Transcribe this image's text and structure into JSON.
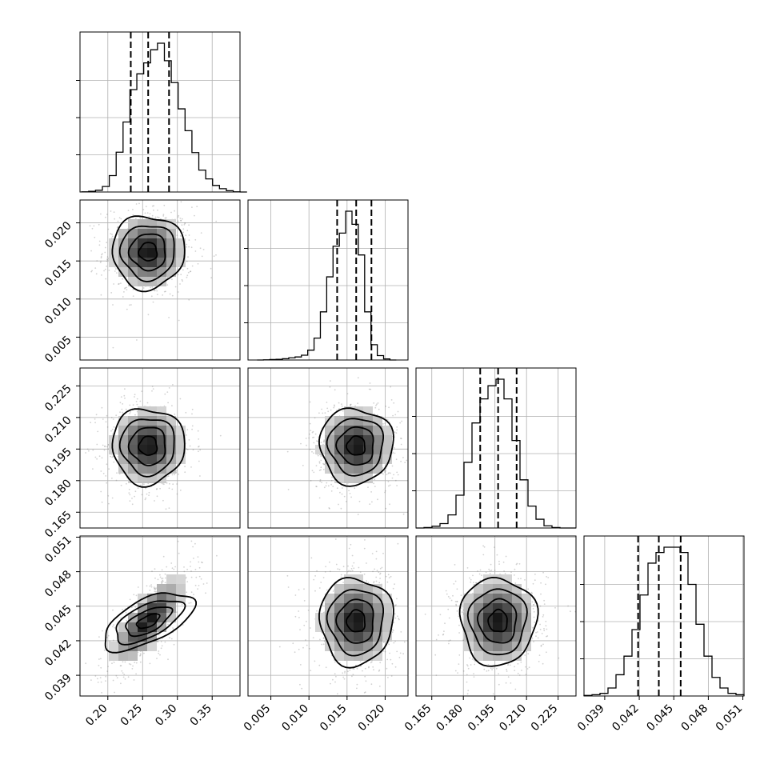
{
  "chart_data": {
    "type": "corner",
    "grid": true,
    "colors": {
      "line": "#000000",
      "grid": "#b0b0b0",
      "points": "#7f7f7f",
      "background": "#ffffff"
    },
    "parameters": [
      {
        "index": 0,
        "axis_range": [
          0.16,
          0.39
        ],
        "ticks": [
          0.2,
          0.25,
          0.3,
          0.35
        ],
        "tick_labels": [
          "0.20",
          "0.25",
          "0.30",
          "0.35"
        ],
        "quantiles": [
          0.233,
          0.258,
          0.288
        ]
      },
      {
        "index": 1,
        "axis_range": [
          0.002,
          0.023
        ],
        "ticks": [
          0.005,
          0.01,
          0.015,
          0.02
        ],
        "tick_labels": [
          "0.005",
          "0.010",
          "0.015",
          "0.020"
        ],
        "quantiles": [
          0.0137,
          0.0162,
          0.0182
        ]
      },
      {
        "index": 2,
        "axis_range": [
          0.1575,
          0.2335
        ],
        "ticks": [
          0.165,
          0.18,
          0.195,
          0.21,
          0.225
        ],
        "tick_labels": [
          "0.165",
          "0.180",
          "0.195",
          "0.210",
          "0.225"
        ],
        "quantiles": [
          0.188,
          0.1965,
          0.2053
        ]
      },
      {
        "index": 3,
        "axis_range": [
          0.0372,
          0.0511
        ],
        "ticks": [
          0.039,
          0.042,
          0.045,
          0.048,
          0.051
        ],
        "tick_labels": [
          "0.039",
          "0.042",
          "0.045",
          "0.048",
          "0.051"
        ],
        "quantiles": [
          0.0419,
          0.0437,
          0.0456
        ]
      }
    ],
    "histograms": [
      {
        "param": 0,
        "bin_edges_start": 0.1625,
        "bin_width": 0.0099,
        "counts": [
          1,
          3,
          8,
          25,
          75,
          182,
          320,
          468,
          540,
          590,
          650,
          680,
          600,
          500,
          380,
          280,
          180,
          100,
          60,
          30,
          15,
          6,
          1,
          0
        ]
      },
      {
        "param": 1,
        "bin_edges_start": 0.0032,
        "bin_width": 0.00083,
        "counts": [
          0,
          1,
          2,
          3,
          6,
          10,
          14,
          22,
          45,
          100,
          220,
          380,
          520,
          580,
          680,
          620,
          480,
          220,
          70,
          20,
          5,
          0
        ]
      },
      {
        "param": 2,
        "bin_edges_start": 0.1575,
        "bin_width": 0.0038,
        "counts": [
          0,
          2,
          8,
          20,
          60,
          150,
          300,
          480,
          590,
          650,
          680,
          590,
          400,
          220,
          100,
          40,
          10,
          2,
          0,
          0
        ]
      },
      {
        "param": 3,
        "bin_edges_start": 0.0372,
        "bin_width": 0.000695,
        "counts": [
          2,
          5,
          10,
          30,
          80,
          150,
          250,
          380,
          500,
          540,
          560,
          560,
          540,
          420,
          270,
          150,
          70,
          30,
          10,
          5
        ]
      }
    ],
    "pairs": [
      {
        "x_param": 0,
        "y_param": 1,
        "mean": [
          0.258,
          0.0162
        ],
        "sd": [
          0.026,
          0.0024
        ],
        "rho": 0.0
      },
      {
        "x_param": 0,
        "y_param": 2,
        "mean": [
          0.258,
          0.1965
        ],
        "sd": [
          0.026,
          0.009
        ],
        "rho": 0.0
      },
      {
        "x_param": 1,
        "y_param": 2,
        "mean": [
          0.0162,
          0.1965
        ],
        "sd": [
          0.0024,
          0.009
        ],
        "rho": 0.0
      },
      {
        "x_param": 0,
        "y_param": 3,
        "mean": [
          0.258,
          0.0437
        ],
        "sd": [
          0.026,
          0.0019
        ],
        "rho": 0.75
      },
      {
        "x_param": 1,
        "y_param": 3,
        "mean": [
          0.0162,
          0.0437
        ],
        "sd": [
          0.0024,
          0.0019
        ],
        "rho": 0.0
      },
      {
        "x_param": 2,
        "y_param": 3,
        "mean": [
          0.1965,
          0.0437
        ],
        "sd": [
          0.009,
          0.0019
        ],
        "rho": 0.0
      }
    ],
    "contour_levels_sigma": [
      0.5,
      1.0,
      1.5,
      2.0
    ]
  }
}
